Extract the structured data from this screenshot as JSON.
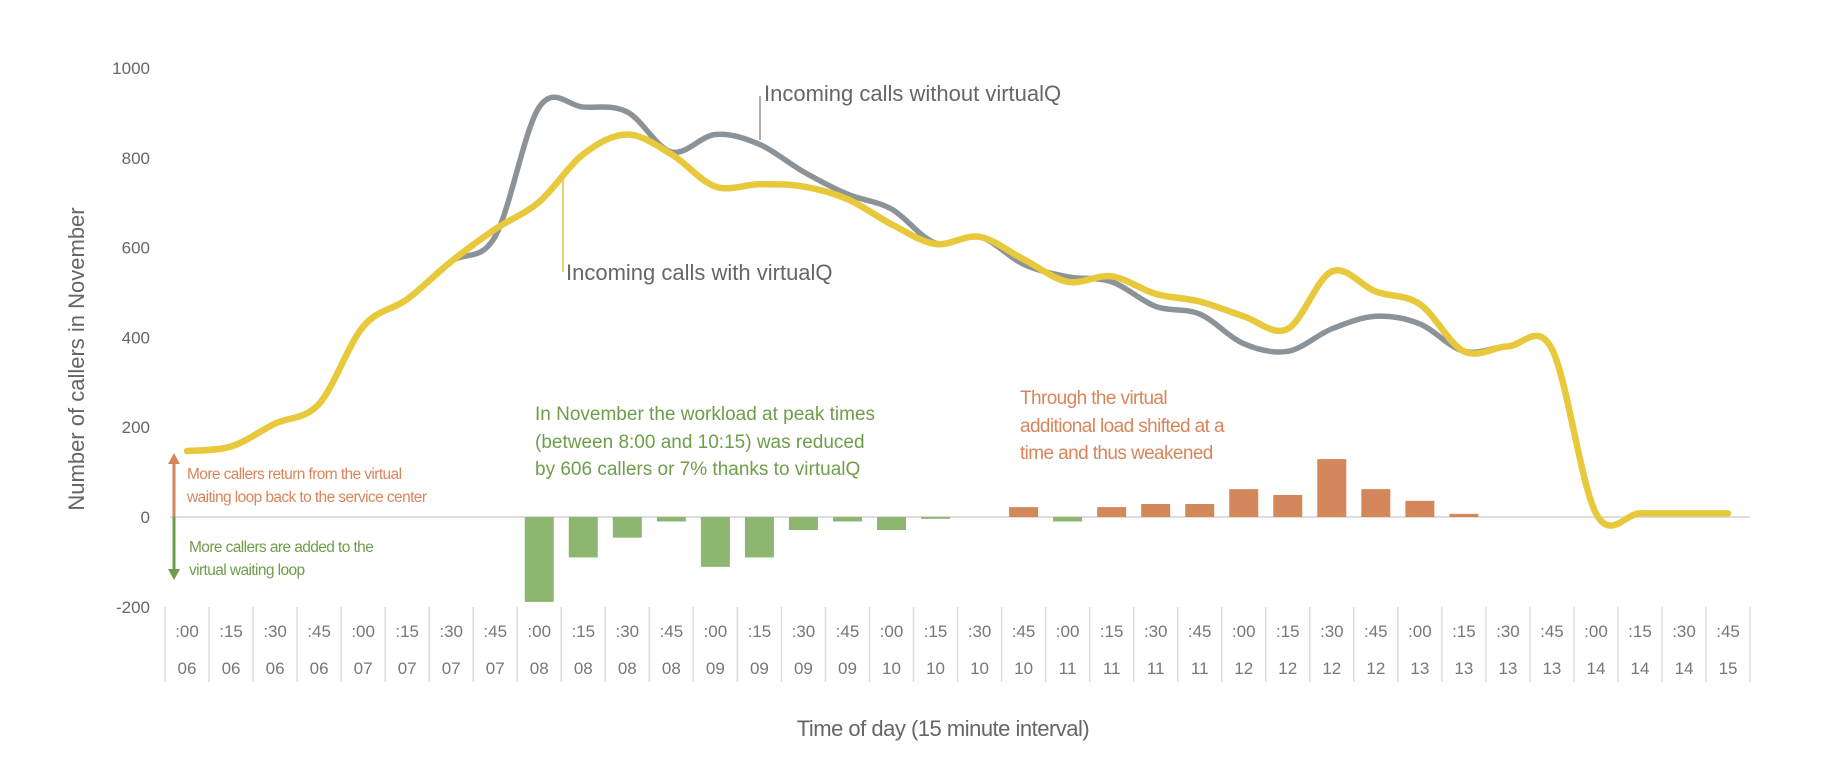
{
  "chart_data": {
    "type": "line+bar",
    "title": "",
    "xlabel": "Time of day (15 minute interval)",
    "ylabel": "Number of callers in November",
    "ylim": [
      -200,
      1000
    ],
    "yticks": [
      1000,
      800,
      600,
      400,
      200,
      0,
      -200
    ],
    "grid": false,
    "categories_minute": [
      ":00",
      ":15",
      ":30",
      ":45",
      ":00",
      ":15",
      ":30",
      ":45",
      ":00",
      ":15",
      ":30",
      ":45",
      ":00",
      ":15",
      ":30",
      ":45",
      ":00",
      ":15",
      ":30",
      ":45",
      ":00",
      ":15",
      ":30",
      ":45",
      ":00",
      ":15",
      ":30",
      ":45",
      ":00",
      ":15",
      ":30",
      ":45",
      ":00",
      ":15",
      ":30",
      ":45"
    ],
    "categories_hour": [
      "06",
      "06",
      "06",
      "06",
      "07",
      "07",
      "07",
      "07",
      "08",
      "08",
      "08",
      "08",
      "09",
      "09",
      "09",
      "09",
      "10",
      "10",
      "10",
      "10",
      "11",
      "11",
      "11",
      "11",
      "12",
      "12",
      "12",
      "12",
      "13",
      "13",
      "13",
      "13",
      "14",
      "14",
      "14",
      "15"
    ],
    "series": [
      {
        "name": "Incoming calls without virtualQ",
        "type": "line",
        "color": "#8C9398",
        "values": [
          147,
          157,
          208,
          252,
          424,
          485,
          569,
          625,
          913,
          913,
          902,
          813,
          852,
          830,
          769,
          719,
          686,
          610,
          624,
          563,
          535,
          524,
          469,
          452,
          386,
          369,
          419,
          447,
          430,
          369,
          380,
          374,
          8,
          8,
          8,
          8
        ]
      },
      {
        "name": "Incoming calls with virtualQ",
        "type": "line",
        "color": "#E8C93B",
        "values": [
          147,
          157,
          208,
          252,
          424,
          485,
          569,
          641,
          702,
          808,
          852,
          808,
          736,
          741,
          736,
          708,
          652,
          608,
          624,
          574,
          524,
          536,
          497,
          480,
          447,
          419,
          547,
          502,
          474,
          369,
          380,
          374,
          8,
          8,
          8,
          8
        ]
      },
      {
        "type": "bar",
        "positive_color": "#D4875A",
        "negative_color": "#8DB671",
        "values": [
          0,
          0,
          0,
          0,
          0,
          0,
          0,
          0,
          -189,
          -90,
          -46,
          -10,
          -111,
          -90,
          -29,
          -10,
          -29,
          -4,
          0,
          22,
          -10,
          22,
          29,
          29,
          62,
          49,
          129,
          62,
          36,
          7,
          0,
          0,
          0,
          0,
          0,
          0
        ]
      }
    ],
    "annotations": {
      "without_label": "Incoming calls without virtualQ",
      "with_label": "Incoming calls with virtualQ",
      "green_note": [
        "In November the workload at peak times",
        "(between 8:00 and 10:15) was reduced",
        "by 606 callers or 7% thanks to virtualQ"
      ],
      "orange_note": [
        "Through the virtual",
        "additional load shifted at a",
        "time and thus weakened"
      ],
      "up_arrow_text": [
        "More callers return from the virtual",
        "waiting loop back to the service center"
      ],
      "down_arrow_text": [
        "More callers are added to the",
        "virtual waiting loop"
      ]
    },
    "colors": {
      "green_text": "#6E9E4A",
      "orange_text": "#D9855A",
      "gray_text": "#8C9398",
      "yellow_text": "#E2C23A"
    }
  }
}
